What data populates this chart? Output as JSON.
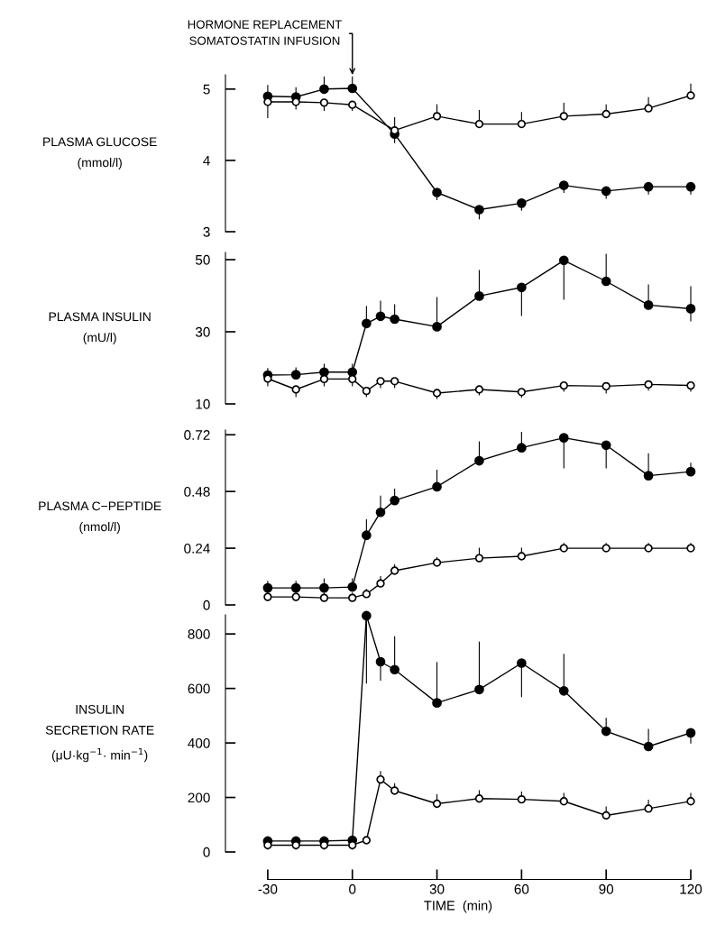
{
  "chart_data": [
    {
      "type": "line",
      "ylabel": "PLASMA GLUCOSE\n(mmol/l)",
      "x": [
        -30,
        -20,
        -10,
        0,
        15,
        30,
        45,
        60,
        75,
        90,
        105,
        120
      ],
      "xlim": [
        -45,
        120
      ],
      "ylim": [
        3,
        5.2
      ],
      "yticks": [
        3,
        4,
        5
      ],
      "tick_labels": "y",
      "marker": "circle",
      "line_style": "solid",
      "grid": false,
      "annotations": [
        {
          "text": "HORMONE REPLACEMENT\nSOMATOSTATIN INFUSION",
          "x": 0,
          "y": 5.2
        }
      ],
      "series": [
        {
          "color": "#000000",
          "values": [
            4.9,
            4.89,
            5.0,
            5.01,
            4.37,
            3.55,
            3.31,
            3.4,
            3.65,
            3.57,
            3.63,
            3.63
          ],
          "errors": [
            [
              4.9,
              5.05
            ],
            [
              4.89,
              5.02
            ],
            [
              5.0,
              5.17
            ],
            [
              5.01,
              5.17
            ],
            [
              4.25,
              4.6
            ],
            [
              3.45,
              3.55
            ],
            [
              3.18,
              3.31
            ],
            [
              3.3,
              3.4
            ],
            [
              3.55,
              3.65
            ],
            [
              3.47,
              3.57
            ],
            [
              3.53,
              3.63
            ],
            [
              3.53,
              3.63
            ]
          ]
        },
        {
          "color": "#ffffff",
          "values": [
            4.82,
            4.82,
            4.81,
            4.78,
            4.42,
            4.62,
            4.51,
            4.51,
            4.62,
            4.65,
            4.73,
            4.91
          ],
          "errors": [
            [
              4.6,
              4.82
            ],
            [
              4.72,
              4.82
            ],
            [
              4.7,
              4.81
            ],
            [
              4.7,
              4.78
            ],
            null,
            [
              4.62,
              4.78
            ],
            [
              4.51,
              4.7
            ],
            [
              4.51,
              4.67
            ],
            [
              4.62,
              4.8
            ],
            [
              4.65,
              4.78
            ],
            [
              4.73,
              4.88
            ],
            [
              4.91,
              5.07
            ]
          ]
        }
      ]
    },
    {
      "type": "line",
      "ylabel": "PLASMA INSULIN\n(mU/l)",
      "x": [
        -30,
        -20,
        -10,
        0,
        5,
        10,
        15,
        30,
        45,
        60,
        75,
        90,
        105,
        120
      ],
      "xlim": [
        -45,
        120
      ],
      "ylim": [
        10,
        52
      ],
      "yticks": [
        10,
        30,
        50
      ],
      "tick_labels": "y",
      "marker": "circle",
      "line_style": "solid",
      "grid": false,
      "series": [
        {
          "color": "#000000",
          "values": [
            18.0,
            18.1,
            18.8,
            18.8,
            32.3,
            34.3,
            33.5,
            31.4,
            39.9,
            42.3,
            49.8,
            44.0,
            37.4,
            36.4
          ],
          "errors": [
            [
              18.0,
              19.8
            ],
            [
              18.1,
              20.0
            ],
            [
              18.8,
              21.0
            ],
            [
              16.5,
              21.0
            ],
            [
              32.3,
              37.0
            ],
            [
              34.3,
              38.5
            ],
            [
              33.5,
              37.5
            ],
            [
              31.4,
              39.5
            ],
            [
              39.9,
              47.0
            ],
            [
              34.5,
              42.3
            ],
            [
              39.0,
              49.8
            ],
            [
              44.0,
              51.5
            ],
            [
              37.4,
              43.0
            ],
            [
              33.0,
              42.5
            ]
          ]
        },
        {
          "color": "#ffffff",
          "values": [
            17.0,
            14.0,
            16.9,
            16.9,
            13.6,
            16.3,
            16.3,
            13.0,
            14.0,
            13.3,
            15.1,
            14.9,
            15.4,
            15.1
          ],
          "errors": [
            [
              15.0,
              17.0
            ],
            [
              12.0,
              14.0
            ],
            [
              15.0,
              16.9
            ],
            [
              15.0,
              16.9
            ],
            [
              12.0,
              13.6
            ],
            [
              14.5,
              16.3
            ],
            [
              14.5,
              16.3
            ],
            [
              11.5,
              13.0
            ],
            [
              12.5,
              14.0
            ],
            [
              11.8,
              13.3
            ],
            [
              13.5,
              15.1
            ],
            [
              13.0,
              14.9
            ],
            [
              13.8,
              15.4
            ],
            [
              13.5,
              15.1
            ]
          ]
        }
      ]
    },
    {
      "type": "line",
      "ylabel": "PLASMA C−PEPTIDE\n(nmol/l)",
      "x": [
        -30,
        -20,
        -10,
        0,
        5,
        10,
        15,
        30,
        45,
        60,
        75,
        90,
        105,
        120
      ],
      "xlim": [
        -45,
        120
      ],
      "ylim": [
        0,
        0.74
      ],
      "yticks": [
        0,
        0.24,
        0.48,
        0.72
      ],
      "tick_labels": "y",
      "marker": "circle",
      "line_style": "solid",
      "grid": false,
      "series": [
        {
          "color": "#000000",
          "values": [
            0.072,
            0.072,
            0.072,
            0.076,
            0.295,
            0.392,
            0.442,
            0.5,
            0.61,
            0.665,
            0.707,
            0.676,
            0.547,
            0.564
          ],
          "errors": [
            [
              0.072,
              0.1
            ],
            [
              0.072,
              0.1
            ],
            [
              0.072,
              0.11
            ],
            [
              0.076,
              0.11
            ],
            [
              0.295,
              0.36
            ],
            [
              0.392,
              0.46
            ],
            [
              0.442,
              0.49
            ],
            [
              0.5,
              0.57
            ],
            [
              0.61,
              0.69
            ],
            [
              0.665,
              0.73
            ],
            [
              0.58,
              0.707
            ],
            [
              0.58,
              0.676
            ],
            [
              0.547,
              0.64
            ],
            [
              0.564,
              0.6
            ]
          ]
        },
        {
          "color": "#ffffff",
          "values": [
            0.034,
            0.034,
            0.03,
            0.03,
            0.046,
            0.091,
            0.145,
            0.179,
            0.198,
            0.206,
            0.24,
            0.24,
            0.24,
            0.24
          ],
          "errors": [
            [
              0.034,
              0.054
            ],
            [
              0.034,
              0.054
            ],
            [
              0.03,
              0.05
            ],
            [
              0.03,
              0.05
            ],
            [
              0.046,
              0.066
            ],
            [
              0.091,
              0.12
            ],
            [
              0.145,
              0.17
            ],
            [
              0.179,
              0.2
            ],
            [
              0.198,
              0.24
            ],
            [
              0.206,
              0.24
            ],
            [
              0.24,
              0.26
            ],
            [
              0.24,
              0.26
            ],
            [
              0.24,
              0.26
            ],
            [
              0.24,
              0.26
            ]
          ]
        }
      ]
    },
    {
      "type": "line",
      "ylabel": "INSULIN\nSECRETION RATE\n(μU·kg$^{−1}$· min$^{−1}$)",
      "xlabel": "TIME  (min)",
      "x": [
        -30,
        -20,
        -10,
        0,
        5,
        10,
        15,
        30,
        45,
        60,
        75,
        90,
        105,
        120
      ],
      "xlim": [
        -45,
        120
      ],
      "xticks": [
        -30,
        0,
        30,
        60,
        90,
        120
      ],
      "ylim": [
        0,
        870
      ],
      "yticks": [
        0,
        200,
        400,
        600,
        800
      ],
      "marker": "circle",
      "line_style": "solid",
      "grid": false,
      "series": [
        {
          "color": "#000000",
          "values": [
            40,
            40,
            40,
            43,
            867,
            698,
            669,
            547,
            596,
            693,
            591,
            443,
            387,
            437
          ],
          "errors": [
            [
              30,
              50
            ],
            [
              30,
              50
            ],
            [
              30,
              50
            ],
            [
              30,
              50
            ],
            [
              620,
              867
            ],
            [
              630,
              698
            ],
            [
              669,
              790
            ],
            [
              547,
              695
            ],
            [
              596,
              770
            ],
            [
              570,
              693
            ],
            [
              591,
              725
            ],
            [
              443,
              490
            ],
            [
              387,
              450
            ],
            [
              400,
              437
            ]
          ]
        },
        {
          "color": "#ffffff",
          "values": [
            25,
            25,
            25,
            25,
            43,
            266,
            225,
            177,
            196,
            193,
            186,
            134,
            159,
            186
          ],
          "errors": [
            [
              10,
              25
            ],
            [
              10,
              25
            ],
            [
              10,
              25
            ],
            [
              10,
              25
            ],
            null,
            [
              266,
              295
            ],
            [
              225,
              250
            ],
            [
              177,
              210
            ],
            [
              196,
              225
            ],
            [
              193,
              220
            ],
            [
              186,
              215
            ],
            [
              134,
              165
            ],
            [
              159,
              190
            ],
            [
              186,
              215
            ]
          ]
        }
      ]
    }
  ]
}
